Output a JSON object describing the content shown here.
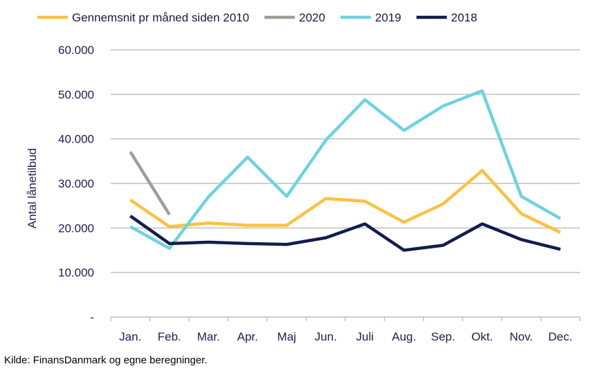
{
  "chart_data": {
    "type": "line",
    "categories": [
      "Jan.",
      "Feb.",
      "Mar.",
      "Apr.",
      "Maj",
      "Jun.",
      "Juli",
      "Aug.",
      "Sep.",
      "Okt.",
      "Nov.",
      "Dec."
    ],
    "ylabel": "Antal lånetilbud",
    "ylim": [
      0,
      60000
    ],
    "yticks": [
      0,
      10000,
      20000,
      30000,
      40000,
      50000,
      60000
    ],
    "ytick_labels": [
      "-",
      "10.000",
      "20.000",
      "30.000",
      "40.000",
      "50.000",
      "60.000"
    ],
    "grid": true,
    "legend_position": "top",
    "series": [
      {
        "name": "Gennemsnit pr måned siden 2010",
        "color": "#f9c242",
        "values": [
          26300,
          20300,
          21100,
          20600,
          20600,
          26600,
          26000,
          21300,
          25400,
          32900,
          23200,
          19000
        ]
      },
      {
        "name": "2020",
        "color": "#a09d96",
        "values": [
          37100,
          23000,
          null,
          null,
          null,
          null,
          null,
          null,
          null,
          null,
          null,
          null
        ]
      },
      {
        "name": "2019",
        "color": "#6fd2e0",
        "values": [
          20300,
          15400,
          27000,
          35900,
          27100,
          39700,
          48800,
          41900,
          47400,
          50800,
          27100,
          22100
        ]
      },
      {
        "name": "2018",
        "color": "#141c4e",
        "values": [
          22700,
          16500,
          16800,
          16500,
          16300,
          17800,
          20900,
          15000,
          16100,
          20900,
          17400,
          15200
        ]
      }
    ]
  },
  "source": "Kilde: FinansDanmark og egne beregninger."
}
